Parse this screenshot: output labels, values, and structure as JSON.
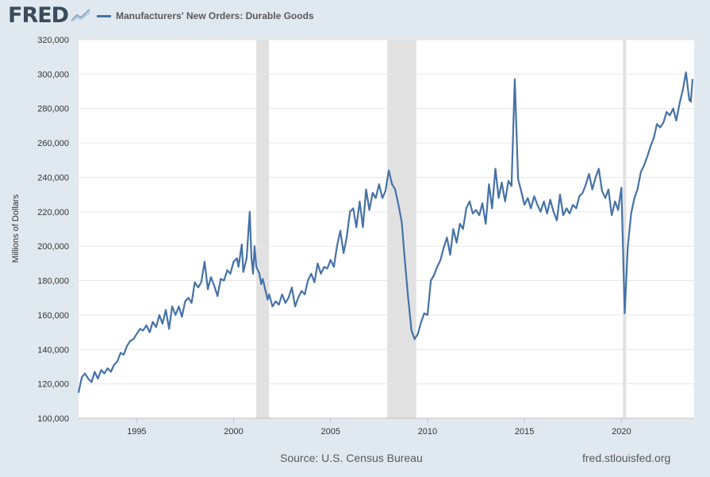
{
  "header": {
    "logo_text": "FRED",
    "logo_icon": "line-chart-icon",
    "legend_label": "Manufacturers' New Orders: Durable Goods"
  },
  "colors": {
    "series": "#4572a7",
    "background": "#e1e9f0",
    "plot": "#ffffff",
    "recession": "#e1e1e1",
    "grid": "#e6e6e6"
  },
  "footer": {
    "source": "Source: U.S. Census Bureau",
    "site": "fred.stlouisfed.org"
  },
  "chart_data": {
    "type": "line",
    "title": "",
    "xlabel": "",
    "ylabel": "Millions of Dollars",
    "xlim": [
      1992.0,
      2023.75
    ],
    "ylim": [
      100000,
      320000
    ],
    "yticks": [
      100000,
      120000,
      140000,
      160000,
      180000,
      200000,
      220000,
      240000,
      260000,
      280000,
      300000,
      320000
    ],
    "ytick_labels": [
      "100,000",
      "120,000",
      "140,000",
      "160,000",
      "180,000",
      "200,000",
      "220,000",
      "240,000",
      "260,000",
      "280,000",
      "300,000",
      "320,000"
    ],
    "xticks": [
      1995,
      2000,
      2005,
      2010,
      2015,
      2020
    ],
    "xtick_labels": [
      "1995",
      "2000",
      "2005",
      "2010",
      "2015",
      "2020"
    ],
    "grid": "horizontal",
    "legend_position": "top",
    "recessions": [
      [
        2001.17,
        2001.83
      ],
      [
        2007.92,
        2009.42
      ],
      [
        2020.08,
        2020.25
      ]
    ],
    "series": [
      {
        "name": "Manufacturers' New Orders: Durable Goods",
        "color": "#4572a7",
        "points": [
          [
            1992.0,
            115000
          ],
          [
            1992.17,
            124000
          ],
          [
            1992.33,
            126000
          ],
          [
            1992.5,
            123000
          ],
          [
            1992.67,
            121000
          ],
          [
            1992.83,
            127000
          ],
          [
            1993.0,
            123000
          ],
          [
            1993.17,
            128000
          ],
          [
            1993.33,
            126000
          ],
          [
            1993.5,
            129000
          ],
          [
            1993.67,
            127000
          ],
          [
            1993.83,
            131000
          ],
          [
            1994.0,
            133000
          ],
          [
            1994.17,
            138000
          ],
          [
            1994.33,
            137000
          ],
          [
            1994.5,
            142000
          ],
          [
            1994.67,
            145000
          ],
          [
            1994.83,
            146000
          ],
          [
            1995.0,
            149000
          ],
          [
            1995.17,
            152000
          ],
          [
            1995.33,
            151000
          ],
          [
            1995.5,
            154000
          ],
          [
            1995.67,
            150000
          ],
          [
            1995.83,
            156000
          ],
          [
            1996.0,
            153000
          ],
          [
            1996.17,
            160000
          ],
          [
            1996.33,
            155000
          ],
          [
            1996.5,
            163000
          ],
          [
            1996.67,
            152000
          ],
          [
            1996.83,
            165000
          ],
          [
            1997.0,
            160000
          ],
          [
            1997.17,
            165000
          ],
          [
            1997.33,
            159000
          ],
          [
            1997.5,
            168000
          ],
          [
            1997.67,
            170000
          ],
          [
            1997.83,
            167000
          ],
          [
            1998.0,
            179000
          ],
          [
            1998.17,
            176000
          ],
          [
            1998.33,
            179000
          ],
          [
            1998.5,
            191000
          ],
          [
            1998.67,
            175000
          ],
          [
            1998.83,
            182000
          ],
          [
            1999.0,
            177000
          ],
          [
            1999.17,
            171000
          ],
          [
            1999.33,
            181000
          ],
          [
            1999.5,
            180000
          ],
          [
            1999.67,
            186000
          ],
          [
            1999.83,
            184000
          ],
          [
            2000.0,
            191000
          ],
          [
            2000.17,
            193000
          ],
          [
            2000.25,
            188000
          ],
          [
            2000.42,
            201000
          ],
          [
            2000.5,
            185000
          ],
          [
            2000.67,
            193000
          ],
          [
            2000.83,
            220000
          ],
          [
            2000.92,
            193000
          ],
          [
            2001.0,
            184000
          ],
          [
            2001.08,
            200000
          ],
          [
            2001.17,
            188000
          ],
          [
            2001.33,
            184000
          ],
          [
            2001.42,
            178000
          ],
          [
            2001.5,
            181000
          ],
          [
            2001.67,
            173000
          ],
          [
            2001.75,
            169000
          ],
          [
            2001.83,
            172000
          ],
          [
            2002.0,
            165000
          ],
          [
            2002.17,
            168000
          ],
          [
            2002.33,
            166000
          ],
          [
            2002.5,
            172000
          ],
          [
            2002.67,
            167000
          ],
          [
            2002.83,
            170000
          ],
          [
            2003.0,
            176000
          ],
          [
            2003.17,
            165000
          ],
          [
            2003.33,
            170000
          ],
          [
            2003.5,
            174000
          ],
          [
            2003.67,
            172000
          ],
          [
            2003.83,
            180000
          ],
          [
            2004.0,
            184000
          ],
          [
            2004.17,
            179000
          ],
          [
            2004.33,
            190000
          ],
          [
            2004.5,
            184000
          ],
          [
            2004.67,
            188000
          ],
          [
            2004.83,
            187000
          ],
          [
            2005.0,
            192000
          ],
          [
            2005.17,
            188000
          ],
          [
            2005.33,
            200000
          ],
          [
            2005.5,
            209000
          ],
          [
            2005.67,
            196000
          ],
          [
            2005.83,
            205000
          ],
          [
            2006.0,
            220000
          ],
          [
            2006.17,
            222000
          ],
          [
            2006.33,
            211000
          ],
          [
            2006.5,
            226000
          ],
          [
            2006.67,
            211000
          ],
          [
            2006.83,
            233000
          ],
          [
            2007.0,
            221000
          ],
          [
            2007.17,
            231000
          ],
          [
            2007.33,
            228000
          ],
          [
            2007.5,
            236000
          ],
          [
            2007.67,
            228000
          ],
          [
            2007.83,
            232000
          ],
          [
            2008.0,
            244000
          ],
          [
            2008.17,
            236000
          ],
          [
            2008.33,
            233000
          ],
          [
            2008.5,
            224000
          ],
          [
            2008.67,
            214000
          ],
          [
            2008.83,
            192000
          ],
          [
            2009.0,
            170000
          ],
          [
            2009.17,
            151000
          ],
          [
            2009.33,
            146000
          ],
          [
            2009.5,
            149000
          ],
          [
            2009.67,
            156000
          ],
          [
            2009.83,
            161000
          ],
          [
            2010.0,
            160000
          ],
          [
            2010.17,
            180000
          ],
          [
            2010.33,
            183000
          ],
          [
            2010.5,
            188000
          ],
          [
            2010.67,
            192000
          ],
          [
            2010.83,
            199000
          ],
          [
            2011.0,
            205000
          ],
          [
            2011.17,
            195000
          ],
          [
            2011.33,
            210000
          ],
          [
            2011.5,
            202000
          ],
          [
            2011.67,
            213000
          ],
          [
            2011.83,
            210000
          ],
          [
            2012.0,
            222000
          ],
          [
            2012.17,
            226000
          ],
          [
            2012.33,
            219000
          ],
          [
            2012.5,
            221000
          ],
          [
            2012.67,
            218000
          ],
          [
            2012.83,
            225000
          ],
          [
            2013.0,
            213000
          ],
          [
            2013.17,
            236000
          ],
          [
            2013.33,
            222000
          ],
          [
            2013.5,
            245000
          ],
          [
            2013.67,
            228000
          ],
          [
            2013.83,
            237000
          ],
          [
            2014.0,
            226000
          ],
          [
            2014.17,
            238000
          ],
          [
            2014.33,
            235000
          ],
          [
            2014.5,
            297000
          ],
          [
            2014.67,
            239000
          ],
          [
            2014.83,
            232000
          ],
          [
            2015.0,
            224000
          ],
          [
            2015.17,
            228000
          ],
          [
            2015.33,
            222000
          ],
          [
            2015.5,
            229000
          ],
          [
            2015.67,
            224000
          ],
          [
            2015.83,
            220000
          ],
          [
            2016.0,
            226000
          ],
          [
            2016.17,
            219000
          ],
          [
            2016.33,
            227000
          ],
          [
            2016.5,
            220000
          ],
          [
            2016.67,
            215000
          ],
          [
            2016.83,
            230000
          ],
          [
            2017.0,
            218000
          ],
          [
            2017.17,
            222000
          ],
          [
            2017.33,
            219000
          ],
          [
            2017.5,
            224000
          ],
          [
            2017.67,
            222000
          ],
          [
            2017.83,
            229000
          ],
          [
            2018.0,
            231000
          ],
          [
            2018.17,
            236000
          ],
          [
            2018.33,
            242000
          ],
          [
            2018.5,
            233000
          ],
          [
            2018.67,
            240000
          ],
          [
            2018.83,
            245000
          ],
          [
            2019.0,
            232000
          ],
          [
            2019.17,
            228000
          ],
          [
            2019.33,
            233000
          ],
          [
            2019.5,
            218000
          ],
          [
            2019.67,
            226000
          ],
          [
            2019.83,
            221000
          ],
          [
            2020.0,
            234000
          ],
          [
            2020.17,
            161000
          ],
          [
            2020.33,
            200000
          ],
          [
            2020.5,
            219000
          ],
          [
            2020.67,
            228000
          ],
          [
            2020.83,
            233000
          ],
          [
            2021.0,
            243000
          ],
          [
            2021.17,
            247000
          ],
          [
            2021.33,
            252000
          ],
          [
            2021.5,
            258000
          ],
          [
            2021.67,
            263000
          ],
          [
            2021.83,
            271000
          ],
          [
            2022.0,
            269000
          ],
          [
            2022.17,
            272000
          ],
          [
            2022.33,
            278000
          ],
          [
            2022.5,
            276000
          ],
          [
            2022.67,
            280000
          ],
          [
            2022.83,
            273000
          ],
          [
            2023.0,
            283000
          ],
          [
            2023.17,
            291000
          ],
          [
            2023.33,
            301000
          ],
          [
            2023.5,
            285000
          ],
          [
            2023.58,
            284000
          ],
          [
            2023.67,
            297000
          ]
        ]
      }
    ]
  }
}
